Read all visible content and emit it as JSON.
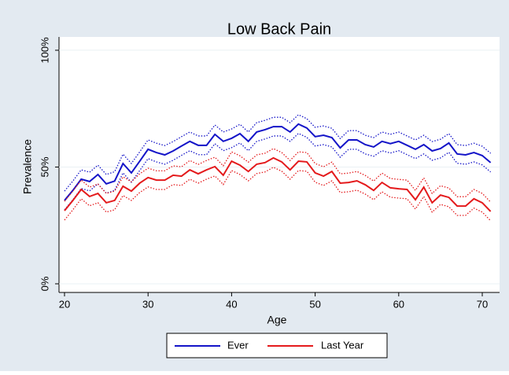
{
  "chart_data": {
    "type": "line",
    "title": "Low Back Pain",
    "x_label": "Age",
    "y_label": "Prevalence",
    "x": [
      20,
      21,
      22,
      23,
      24,
      25,
      26,
      27,
      28,
      29,
      30,
      31,
      32,
      33,
      34,
      35,
      36,
      37,
      38,
      39,
      40,
      41,
      42,
      43,
      44,
      45,
      46,
      47,
      48,
      49,
      50,
      51,
      52,
      53,
      54,
      55,
      56,
      57,
      58,
      59,
      60,
      61,
      62,
      63,
      64,
      65,
      66,
      67,
      68,
      69,
      70,
      71
    ],
    "series": [
      {
        "name": "Ever",
        "color": "#1414c8",
        "values": [
          35.7,
          40,
          44.8,
          43.8,
          46.8,
          42.8,
          44,
          51.5,
          47.5,
          52.5,
          57.6,
          56.2,
          55.2,
          56.9,
          59,
          61,
          59.3,
          59.3,
          64,
          61,
          62.3,
          64.3,
          61,
          65,
          66,
          67.3,
          67.3,
          65,
          68.4,
          66.7,
          63,
          63.6,
          62.6,
          58.2,
          61.6,
          61.6,
          59.6,
          58.6,
          61,
          60,
          61,
          59.3,
          57.6,
          59.6,
          56.9,
          57.9,
          60.3,
          55.6,
          55.2,
          56.2,
          54.9,
          51.9
        ],
        "lower": [
          31.7,
          36,
          40.8,
          39.8,
          42.8,
          38.8,
          40,
          47.5,
          43.5,
          48.5,
          53.6,
          52.2,
          51.2,
          52.9,
          55,
          57,
          55.3,
          55.3,
          60,
          57,
          58.3,
          60.3,
          57,
          61,
          62,
          63.3,
          63.3,
          61,
          64.4,
          62.7,
          59,
          59.6,
          58.6,
          54.2,
          57.6,
          57.6,
          55.6,
          54.6,
          57,
          56,
          57,
          55.3,
          53.6,
          55.6,
          52.9,
          53.9,
          56.3,
          51.6,
          51.2,
          52.2,
          50.9,
          47.9
        ],
        "upper": [
          39.7,
          44,
          48.8,
          47.8,
          50.8,
          46.8,
          48,
          55.5,
          51.5,
          56.5,
          61.6,
          60.2,
          59.2,
          60.9,
          63,
          65,
          63.3,
          63.3,
          68,
          65,
          66.3,
          68.3,
          65,
          69,
          70,
          71.3,
          71.3,
          69,
          72.4,
          70.7,
          67,
          67.6,
          66.6,
          62.2,
          65.6,
          65.6,
          63.6,
          62.6,
          65,
          64,
          65,
          63.3,
          61.6,
          63.6,
          60.9,
          61.9,
          64.3,
          59.6,
          59.2,
          60.2,
          58.9,
          55.9
        ]
      },
      {
        "name": "Last Year",
        "color": "#e41a1c",
        "values": [
          31.3,
          35.7,
          40.4,
          37.4,
          38.7,
          34.7,
          35.7,
          41.8,
          39.7,
          43.1,
          45.5,
          44.4,
          44.4,
          46.5,
          46.1,
          48.8,
          47.1,
          48.8,
          50.2,
          46.5,
          52.5,
          50.8,
          48.1,
          51.2,
          51.9,
          53.9,
          52.2,
          48.8,
          52.5,
          52.2,
          47.5,
          46.1,
          48.1,
          43.1,
          43.4,
          44.1,
          42.4,
          40,
          43.4,
          41.1,
          40.7,
          40.4,
          36,
          41.4,
          34.7,
          38,
          37,
          33.3,
          33.3,
          36.4,
          34.7,
          31
        ],
        "lower": [
          27.3,
          31.7,
          36.4,
          33.4,
          34.7,
          30.7,
          31.7,
          37.8,
          35.7,
          39.1,
          41.5,
          40.4,
          40.4,
          42.5,
          42.1,
          44.8,
          43.1,
          44.8,
          46.2,
          42.5,
          48.5,
          46.8,
          44.1,
          47.2,
          47.9,
          49.9,
          48.2,
          44.8,
          48.5,
          48.2,
          43.5,
          42.1,
          44.1,
          39.1,
          39.4,
          40.1,
          38.4,
          36,
          39.4,
          37.1,
          36.7,
          36.4,
          32,
          37.4,
          30.7,
          34,
          33,
          29.3,
          29.3,
          32.4,
          30.7,
          27
        ],
        "upper": [
          35.3,
          39.7,
          44.4,
          41.4,
          42.7,
          38.7,
          39.7,
          45.8,
          43.7,
          47.1,
          49.5,
          48.4,
          48.4,
          50.5,
          50.1,
          52.8,
          51.1,
          52.8,
          54.2,
          50.5,
          56.5,
          54.8,
          52.1,
          55.2,
          55.9,
          57.9,
          56.2,
          52.8,
          56.5,
          56.2,
          51.5,
          50.1,
          52.1,
          47.1,
          47.4,
          48.1,
          46.4,
          44,
          47.4,
          45.1,
          44.7,
          44.4,
          40,
          45.4,
          38.7,
          42,
          41,
          37.3,
          37.3,
          40.4,
          38.7,
          35
        ]
      }
    ],
    "xlim": [
      19.34,
      72.07
    ],
    "xticks": [
      20,
      30,
      40,
      50,
      60,
      70
    ],
    "ylim": [
      -3.7,
      105.7
    ],
    "yticks": [
      {
        "value": 0,
        "label": "0%"
      },
      {
        "value": 50,
        "label": "50%"
      },
      {
        "value": 100,
        "label": "100%"
      }
    ],
    "grid": true,
    "legend": "bottom"
  }
}
